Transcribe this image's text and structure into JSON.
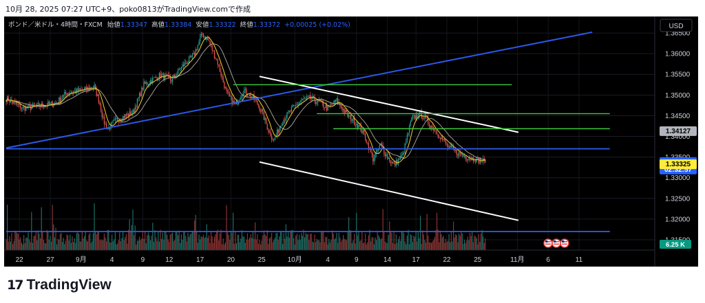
{
  "header": {
    "caption": "10月 28, 2025 07:27 UTC+9、poko0813がTradingView.comで作成"
  },
  "legend": {
    "symbol": "ポンド／米ドル・4時間・FXCM",
    "open_label": "始値",
    "open": "1.33347",
    "high_label": "高値",
    "high": "1.33384",
    "low_label": "安値",
    "low": "1.33322",
    "close_label": "終値",
    "close": "1.33372",
    "change": "+0.00025 (+0.02%)"
  },
  "currency_button": "USD",
  "price_badges": {
    "marked_level": "1.34127",
    "last_price": "1.33372",
    "countdown": "02:32:57",
    "prev_close": "1.33325",
    "volume": "6.25 K"
  },
  "logo": {
    "word": "TradingView",
    "mark": "17"
  },
  "colors": {
    "up": "#26a69a",
    "down": "#ef5350",
    "ma_fast": "#e6c229",
    "ma_slow": "#b5ada0",
    "trendline": "#2b59e8",
    "channel": "#ffffff",
    "green_level": "#3ec93e",
    "badge_blue": "#2962ff",
    "badge_yellow": "#ffeb3b",
    "badge_gray": "#b2b5be",
    "badge_green": "#089981"
  },
  "chart_data": {
    "type": "candlestick",
    "symbol": "GBPUSD",
    "timeframe": "4H",
    "ylim": [
      1.3125,
      1.369
    ],
    "y_ticks": [
      "1.31500",
      "1.32000",
      "1.32500",
      "1.33000",
      "1.33500",
      "1.34000",
      "1.34500",
      "1.35000",
      "1.35500",
      "1.36000",
      "1.36500"
    ],
    "x_ticks": [
      "22",
      "27",
      "9月",
      "4",
      "9",
      "12",
      "17",
      "20",
      "25",
      "10月",
      "4",
      "9",
      "14",
      "17",
      "22",
      "25",
      "11月",
      "6",
      "11"
    ],
    "x_tick_bars": [
      12,
      40,
      68,
      96,
      124,
      148,
      176,
      204,
      232,
      262,
      292,
      318,
      346,
      372,
      400,
      428,
      464,
      492,
      520
    ],
    "last_bar_index": 435,
    "anchors": [
      [
        0,
        1.3492
      ],
      [
        15,
        1.3468
      ],
      [
        30,
        1.3474
      ],
      [
        45,
        1.348
      ],
      [
        55,
        1.3506
      ],
      [
        70,
        1.3512
      ],
      [
        80,
        1.352
      ],
      [
        85,
        1.348
      ],
      [
        88,
        1.344
      ],
      [
        92,
        1.3418
      ],
      [
        100,
        1.344
      ],
      [
        115,
        1.3458
      ],
      [
        125,
        1.3525
      ],
      [
        140,
        1.3548
      ],
      [
        150,
        1.3536
      ],
      [
        160,
        1.357
      ],
      [
        170,
        1.3595
      ],
      [
        178,
        1.3648
      ],
      [
        184,
        1.363
      ],
      [
        192,
        1.3578
      ],
      [
        200,
        1.3505
      ],
      [
        208,
        1.3474
      ],
      [
        215,
        1.3512
      ],
      [
        225,
        1.3492
      ],
      [
        232,
        1.346
      ],
      [
        238,
        1.3415
      ],
      [
        243,
        1.339
      ],
      [
        250,
        1.3435
      ],
      [
        260,
        1.3468
      ],
      [
        268,
        1.3487
      ],
      [
        276,
        1.3492
      ],
      [
        284,
        1.3482
      ],
      [
        292,
        1.3467
      ],
      [
        300,
        1.3486
      ],
      [
        310,
        1.345
      ],
      [
        318,
        1.3432
      ],
      [
        325,
        1.3405
      ],
      [
        333,
        1.3345
      ],
      [
        340,
        1.338
      ],
      [
        346,
        1.335
      ],
      [
        352,
        1.333
      ],
      [
        360,
        1.3355
      ],
      [
        368,
        1.3442
      ],
      [
        376,
        1.3455
      ],
      [
        386,
        1.3425
      ],
      [
        394,
        1.34
      ],
      [
        402,
        1.3372
      ],
      [
        410,
        1.336
      ],
      [
        418,
        1.335
      ],
      [
        426,
        1.3345
      ],
      [
        435,
        1.33372
      ]
    ],
    "lines": [
      {
        "name": "",
        "kind": "rising trendline",
        "color": "blue",
        "points": [
          [
            0,
            1.3372
          ],
          [
            532,
            1.3652
          ]
        ]
      },
      {
        "name": "",
        "kind": "channel upper",
        "color": "white",
        "points": [
          [
            230,
            1.3545
          ],
          [
            465,
            1.341
          ]
        ]
      },
      {
        "name": "",
        "kind": "channel lower",
        "color": "white",
        "points": [
          [
            230,
            1.3338
          ],
          [
            465,
            1.3197
          ]
        ]
      },
      {
        "name": "",
        "kind": "level",
        "color": "green",
        "points": [
          [
            206,
            1.3525
          ],
          [
            459,
            1.3525
          ]
        ]
      },
      {
        "name": "",
        "kind": "level",
        "color": "green",
        "points": [
          [
            282,
            1.3455
          ],
          [
            548,
            1.3455
          ]
        ]
      },
      {
        "name": "",
        "kind": "level",
        "color": "green",
        "points": [
          [
            297,
            1.34185
          ],
          [
            548,
            1.34185
          ]
        ]
      },
      {
        "name": "",
        "kind": "level",
        "color": "blue",
        "points": [
          [
            0,
            1.337
          ],
          [
            548,
            1.337
          ]
        ]
      },
      {
        "name": "",
        "kind": "level",
        "color": "blue",
        "points": [
          [
            0,
            1.317
          ],
          [
            548,
            1.317
          ]
        ]
      }
    ],
    "grid": true,
    "legend_position": "top-left"
  }
}
